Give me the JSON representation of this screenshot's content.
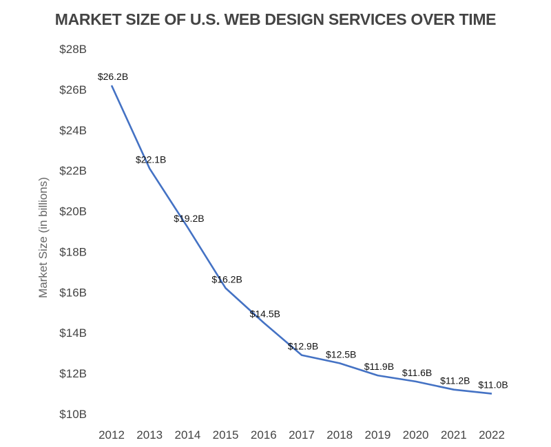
{
  "chart_data": {
    "type": "line",
    "title": "MARKET SIZE OF U.S. WEB DESIGN SERVICES OVER TIME",
    "xlabel": "",
    "ylabel": "Market Size (in billions)",
    "categories": [
      "2012",
      "2013",
      "2014",
      "2015",
      "2016",
      "2017",
      "2018",
      "2019",
      "2020",
      "2021",
      "2022"
    ],
    "series": [
      {
        "name": "Market Size",
        "color": "#4472c4",
        "values": [
          26.2,
          22.1,
          19.2,
          16.2,
          14.5,
          12.9,
          12.5,
          11.9,
          11.6,
          11.2,
          11.0
        ],
        "data_labels": [
          "$26.2B",
          "$22.1B",
          "$19.2B",
          "$16.2B",
          "$14.5B",
          "$12.9B",
          "$12.5B",
          "$11.9B",
          "$11.6B",
          "$11.2B",
          "$11.0B"
        ]
      }
    ],
    "ylim": [
      10,
      28
    ],
    "yticks": [
      28,
      26,
      24,
      22,
      20,
      18,
      16,
      14,
      12,
      10
    ],
    "ytick_labels": [
      "$28B",
      "$26B",
      "$24B",
      "$22B",
      "$20B",
      "$18B",
      "$16B",
      "$14B",
      "$12B",
      "$10B"
    ],
    "grid": false,
    "legend": "none"
  }
}
